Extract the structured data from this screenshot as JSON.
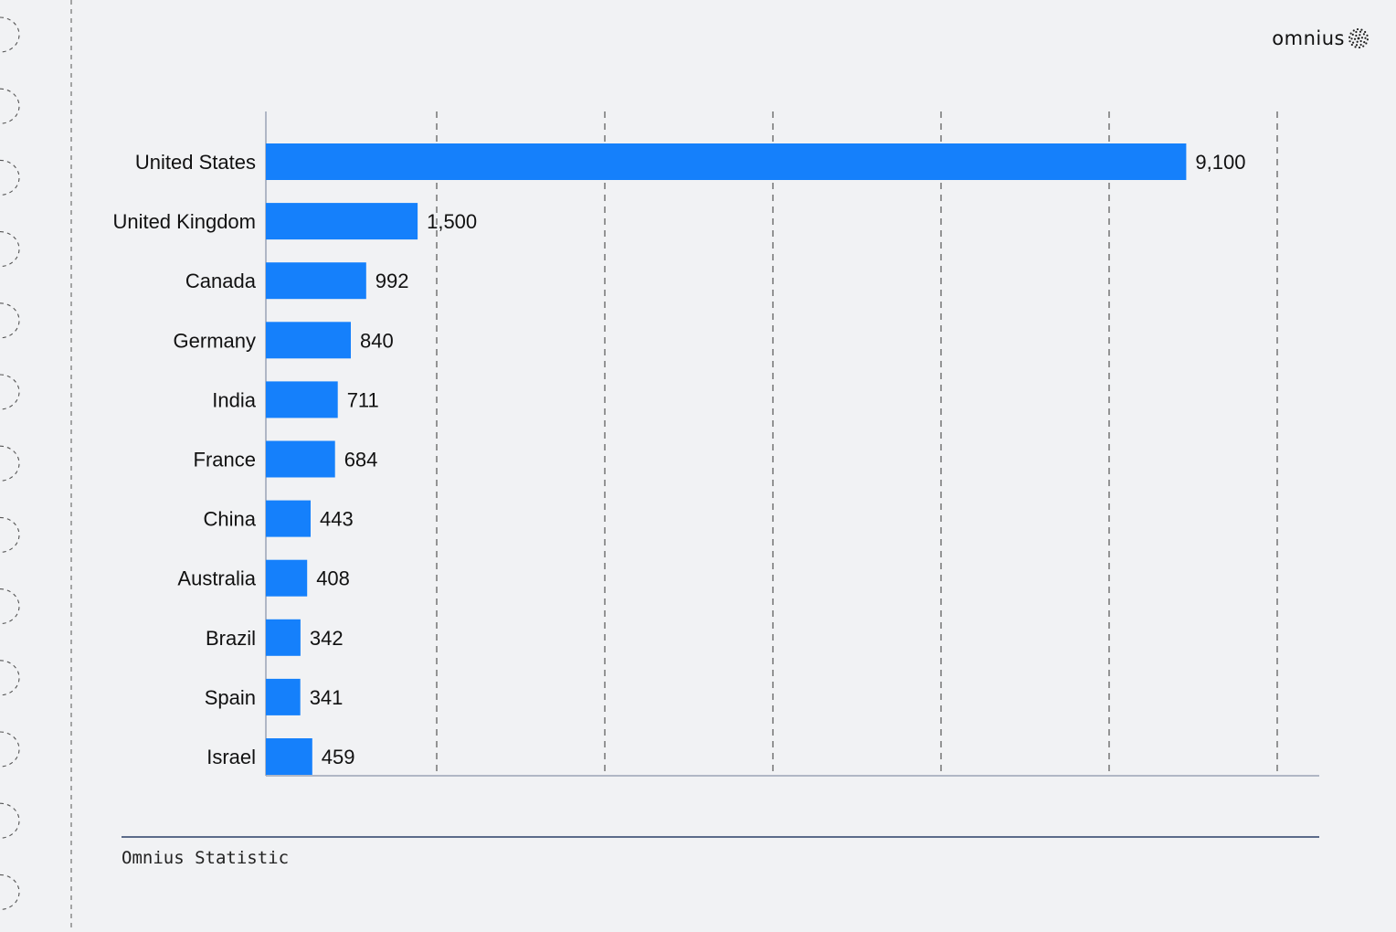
{
  "brand": {
    "name": "omnius",
    "logo_icon": "dotted-sphere-icon"
  },
  "footer": {
    "source": "Omnius Statistic"
  },
  "colors": {
    "bar": "#1580fb",
    "background": "#f1f2f4",
    "gridline": "#555555",
    "footer_rule": "#5c6b8a"
  },
  "chart_data": {
    "type": "bar",
    "orientation": "horizontal",
    "categories": [
      "United States",
      "United Kingdom",
      "Canada",
      "Germany",
      "India",
      "France",
      "China",
      "Australia",
      "Brazil",
      "Spain",
      "Israel"
    ],
    "values": [
      9100,
      1500,
      992,
      840,
      711,
      684,
      443,
      408,
      342,
      341,
      459
    ],
    "value_labels": [
      "9,100",
      "1,500",
      "992",
      "840",
      "711",
      "684",
      "443",
      "408",
      "342",
      "341",
      "459"
    ],
    "xlim": [
      0,
      10000
    ],
    "grid": true,
    "title": "",
    "xlabel": "",
    "ylabel": ""
  }
}
